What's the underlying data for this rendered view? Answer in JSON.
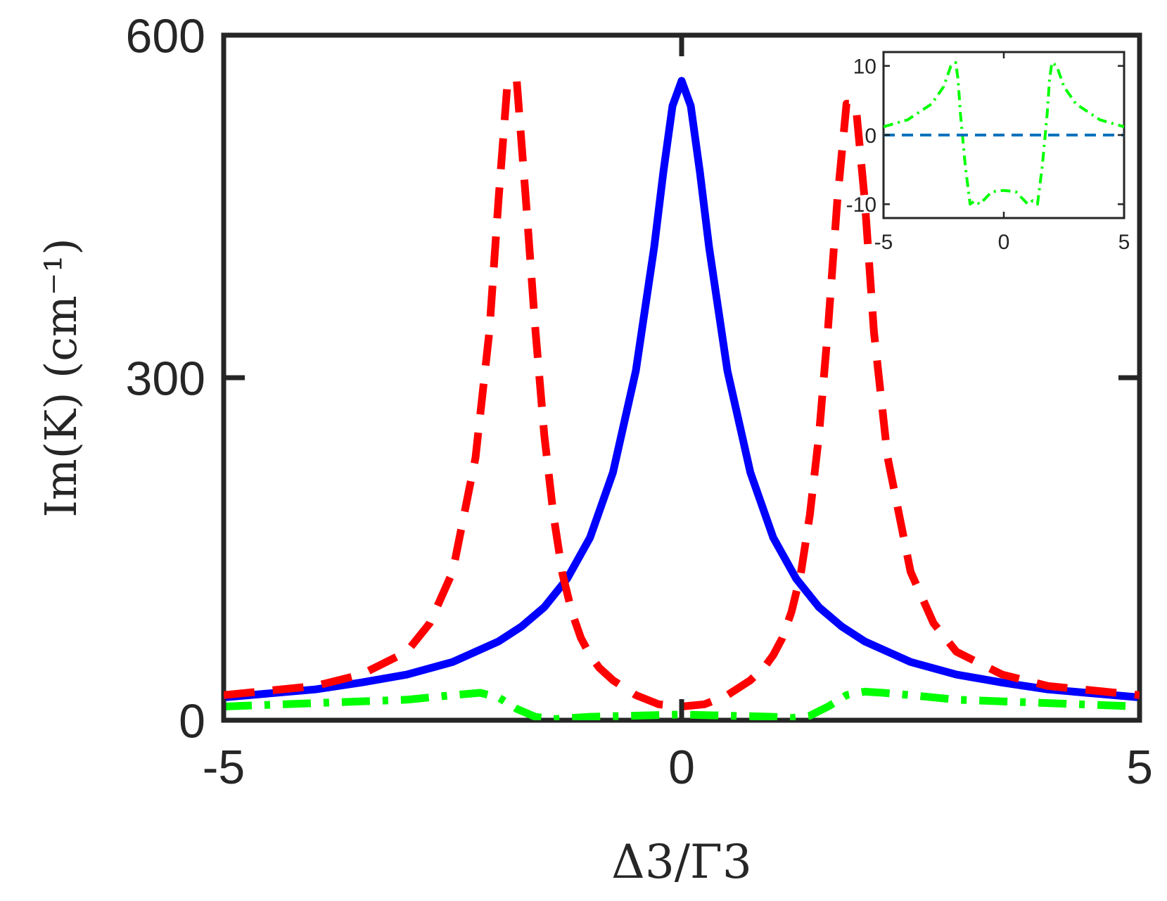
{
  "chart_data": [
    {
      "type": "line",
      "role": "main",
      "xlabel": "Δ3/Γ3",
      "ylabel": "Im(K)   (cm⁻¹)",
      "xlim": [
        -5,
        5
      ],
      "ylim": [
        0,
        600
      ],
      "xticks": [
        -5,
        0,
        5
      ],
      "yticks": [
        0,
        300,
        600
      ],
      "xtick_labels": [
        "-5",
        "0",
        "5"
      ],
      "ytick_labels": [
        "0",
        "300",
        "600"
      ],
      "grid": false,
      "series": [
        {
          "name": "solid blue",
          "color": "#0000ff",
          "style": "solid",
          "x": [
            -5,
            -4,
            -3.5,
            -3,
            -2.5,
            -2,
            -1.75,
            -1.5,
            -1.25,
            -1,
            -0.75,
            -0.5,
            -0.3,
            -0.2,
            -0.1,
            0,
            0.1,
            0.2,
            0.3,
            0.5,
            0.75,
            1,
            1.25,
            1.5,
            1.75,
            2,
            2.5,
            3,
            3.5,
            4,
            5
          ],
          "y": [
            20,
            27,
            33,
            40,
            51,
            69,
            82,
            99,
            124,
            160,
            217,
            306,
            414,
            480,
            538,
            560,
            538,
            480,
            414,
            306,
            217,
            160,
            124,
            99,
            82,
            69,
            51,
            40,
            33,
            27,
            20
          ]
        },
        {
          "name": "dashed red",
          "color": "#ff0000",
          "style": "dashed",
          "x": [
            -5,
            -4,
            -3.5,
            -3,
            -2.75,
            -2.5,
            -2.25,
            -2.1,
            -2.0,
            -1.9,
            -1.8,
            -1.7,
            -1.6,
            -1.5,
            -1.4,
            -1.3,
            -1.2,
            -1.1,
            -1.0,
            -0.9,
            -0.75,
            -0.5,
            -0.25,
            0,
            0.25,
            0.5,
            0.75,
            0.9,
            1.0,
            1.1,
            1.2,
            1.3,
            1.4,
            1.5,
            1.6,
            1.7,
            1.8,
            1.9,
            2.0,
            2.1,
            2.25,
            2.5,
            2.75,
            3,
            3.5,
            4,
            5
          ],
          "y": [
            22,
            30,
            40,
            60,
            85,
            130,
            230,
            340,
            455,
            560,
            560,
            455,
            345,
            250,
            180,
            128,
            95,
            72,
            57,
            46,
            35,
            22,
            14,
            12,
            14,
            22,
            35,
            46,
            57,
            72,
            95,
            128,
            180,
            250,
            345,
            455,
            540,
            540,
            455,
            340,
            230,
            130,
            85,
            60,
            40,
            30,
            22
          ]
        },
        {
          "name": "dash-dot green",
          "color": "#00ff00",
          "style": "dashdot",
          "x": [
            -5,
            -4,
            -3,
            -2.5,
            -2.2,
            -2.0,
            -1.8,
            -1.6,
            -1.4,
            -1.2,
            -1.0,
            -0.5,
            0,
            0.5,
            1.0,
            1.2,
            1.4,
            1.6,
            1.8,
            2.0,
            2.2,
            2.5,
            3,
            4,
            5
          ],
          "y": [
            12,
            15,
            18,
            22,
            24,
            20,
            10,
            3,
            1,
            2,
            3,
            4,
            5,
            4,
            3,
            2,
            4,
            12,
            22,
            25,
            24,
            22,
            18,
            15,
            12
          ]
        }
      ]
    },
    {
      "type": "line",
      "role": "inset",
      "xlim": [
        -5,
        5
      ],
      "ylim": [
        -12,
        12
      ],
      "xticks": [
        -5,
        0,
        5
      ],
      "yticks": [
        -10,
        0,
        10
      ],
      "xtick_labels": [
        "-5",
        "0",
        "5"
      ],
      "ytick_labels": [
        "-10",
        "0",
        "10"
      ],
      "series": [
        {
          "name": "dash-dot green",
          "color": "#00ff00",
          "style": "dashdot",
          "x": [
            -5,
            -4,
            -3,
            -2.5,
            -2.2,
            -2.0,
            -1.9,
            -1.8,
            -1.6,
            -1.4,
            -1.2,
            -1.0,
            -0.5,
            0,
            0.5,
            1.0,
            1.2,
            1.4,
            1.6,
            1.8,
            1.9,
            2.0,
            2.2,
            2.5,
            3,
            4,
            5
          ],
          "y": [
            1.2,
            2.2,
            4.5,
            7,
            10,
            10.5,
            8,
            3,
            -4.5,
            -10,
            -9.5,
            -10,
            -8.2,
            -8,
            -8.2,
            -10,
            -9.5,
            -10,
            -4.5,
            3,
            8,
            10.5,
            10,
            7,
            4.5,
            2.2,
            1.2
          ]
        },
        {
          "name": "dashed blue",
          "color": "#0072bd",
          "style": "dashed",
          "x": [
            -5,
            5
          ],
          "y": [
            0,
            0
          ]
        }
      ]
    }
  ]
}
